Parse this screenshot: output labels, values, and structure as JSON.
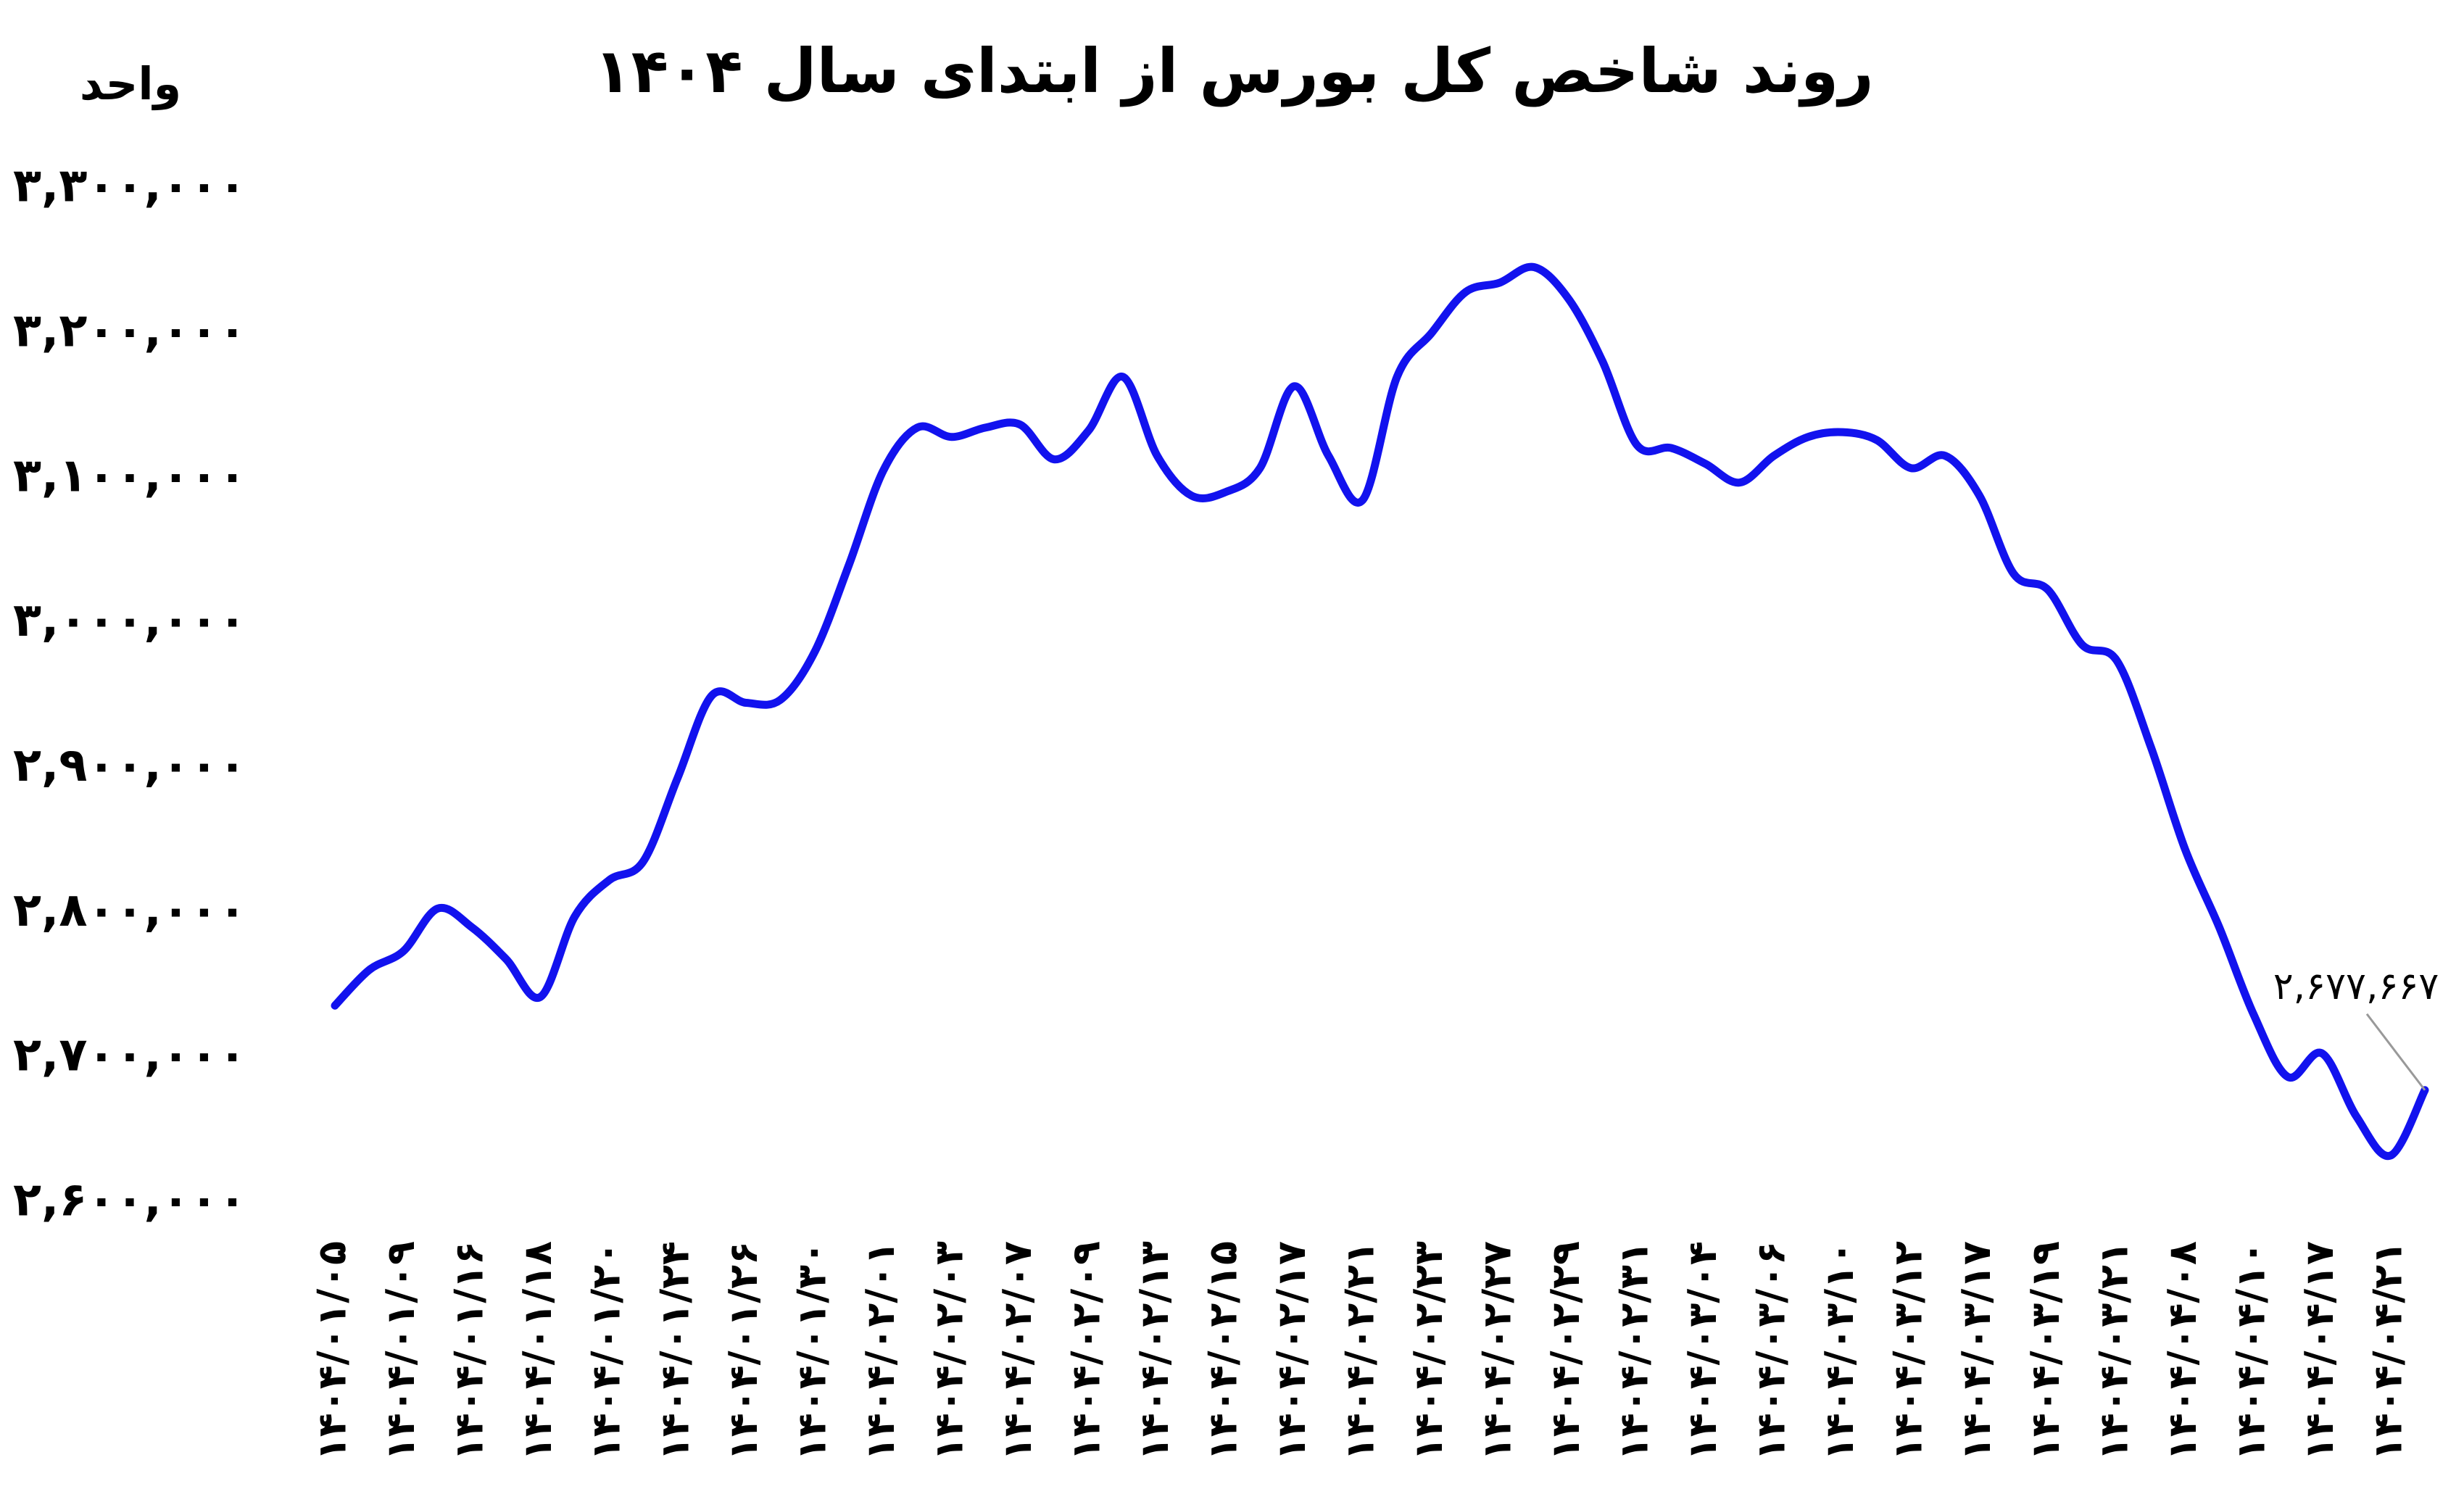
{
  "chart_data": {
    "type": "line",
    "title": "روند شاخص کل بورس از ابتدای سال ۱۴۰۴",
    "y_label": "واحد",
    "categories": [
      "۱۴۰۴/۰۱/۰۵",
      null,
      "۱۴۰۴/۰۱/۰۹",
      null,
      "۱۴۰۴/۰۱/۱۶",
      null,
      "۱۴۰۴/۰۱/۱۸",
      null,
      "۱۴۰۴/۰۱/۲۰",
      null,
      "۱۴۰۴/۰۱/۲۴",
      null,
      "۱۴۰۴/۰۱/۲۶",
      null,
      "۱۴۰۴/۰۱/۳۰",
      null,
      "۱۴۰۴/۰۲/۰۱",
      null,
      "۱۴۰۴/۰۲/۰۳",
      null,
      "۱۴۰۴/۰۲/۰۷",
      null,
      "۱۴۰۴/۰۲/۰۹",
      null,
      "۱۴۰۴/۰۲/۱۳",
      null,
      "۱۴۰۴/۰۲/۱۵",
      null,
      "۱۴۰۴/۰۲/۱۷",
      null,
      "۱۴۰۴/۰۲/۲۱",
      null,
      "۱۴۰۴/۰۲/۲۳",
      null,
      "۱۴۰۴/۰۲/۲۷",
      null,
      "۱۴۰۴/۰۲/۲۹",
      null,
      "۱۴۰۴/۰۲/۳۱",
      null,
      "۱۴۰۴/۰۳/۰۴",
      null,
      "۱۴۰۴/۰۳/۰۶",
      null,
      "۱۴۰۴/۰۳/۱۰",
      null,
      "۱۴۰۴/۰۳/۱۲",
      null,
      "۱۴۰۴/۰۳/۱۷",
      null,
      "۱۴۰۴/۰۳/۱۹",
      null,
      "۱۴۰۴/۰۳/۲۱",
      null,
      "۱۴۰۴/۰۴/۰۸",
      null,
      "۱۴۰۴/۰۴/۱۰",
      null,
      "۱۴۰۴/۰۴/۱۷",
      null,
      "۱۴۰۴/۰۴/۲۱",
      null
    ],
    "series": [
      {
        "name": "شاخص کل",
        "color": "#1212ee",
        "values": [
          2736000,
          2760600,
          2773600,
          2803000,
          2790000,
          2768000,
          2742000,
          2797500,
          2822500,
          2835500,
          2893000,
          2950000,
          2945000,
          2947000,
          2980000,
          3040000,
          3105000,
          3135000,
          3128500,
          3135000,
          3137000,
          3113000,
          3133000,
          3170000,
          3115500,
          3088000,
          3090500,
          3107000,
          3163500,
          3115500,
          3085000,
          3170000,
          3200000,
          3228500,
          3235000,
          3245700,
          3224000,
          3180600,
          3123000,
          3120900,
          3110000,
          3097000,
          3115500,
          3128500,
          3131800,
          3126400,
          3107000,
          3115500,
          3088000,
          3034000,
          3023000,
          2985000,
          2974400,
          2914700,
          2844000,
          2790000,
          2730000,
          2686800,
          2703000,
          2659600,
          2632500,
          2677667
        ],
        "value_labels": [
          null,
          null,
          null,
          null,
          null,
          null,
          null,
          null,
          null,
          null,
          null,
          null,
          null,
          null,
          null,
          null,
          null,
          null,
          null,
          null,
          null,
          null,
          null,
          null,
          null,
          null,
          null,
          null,
          null,
          null,
          null,
          null,
          null,
          null,
          null,
          null,
          null,
          null,
          null,
          null,
          null,
          null,
          null,
          null,
          null,
          null,
          null,
          null,
          null,
          null,
          null,
          null,
          null,
          null,
          null,
          null,
          null,
          null,
          null,
          null,
          null,
          "۲,۶۷۷,۶۶۷"
        ]
      }
    ],
    "ylim": [
      2600000,
      3300000
    ],
    "yticks": [
      {
        "value": 2600000,
        "label": "۲,۶۰۰,۰۰۰"
      },
      {
        "value": 2700000,
        "label": "۲,۷۰۰,۰۰۰"
      },
      {
        "value": 2800000,
        "label": "۲,۸۰۰,۰۰۰"
      },
      {
        "value": 2900000,
        "label": "۲,۹۰۰,۰۰۰"
      },
      {
        "value": 3000000,
        "label": "۳,۰۰۰,۰۰۰"
      },
      {
        "value": 3100000,
        "label": "۳,۱۰۰,۰۰۰"
      },
      {
        "value": 3200000,
        "label": "۳,۲۰۰,۰۰۰"
      },
      {
        "value": 3300000,
        "label": "۳,۳۰۰,۰۰۰"
      }
    ],
    "grid": false
  }
}
